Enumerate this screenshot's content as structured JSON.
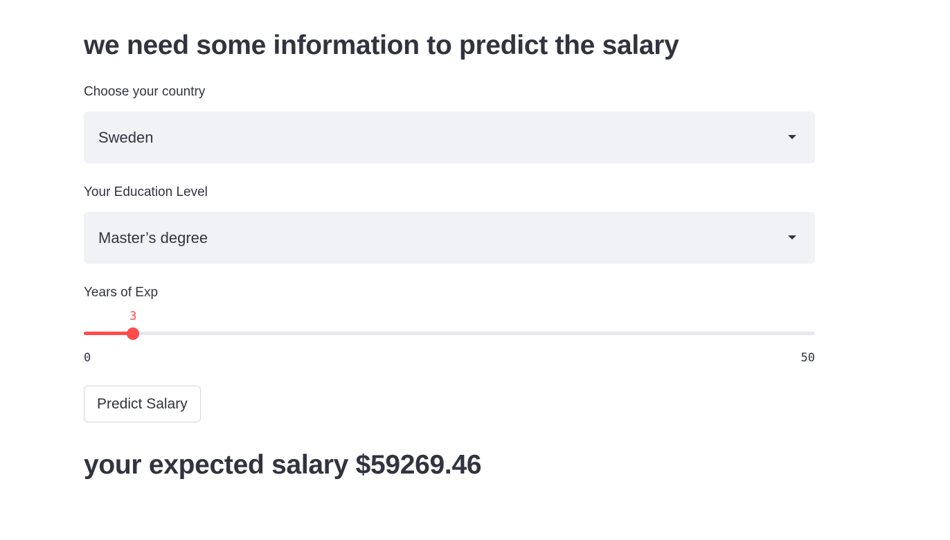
{
  "header": {
    "title": "we need some information to predict the salary"
  },
  "country": {
    "label": "Choose your country",
    "selected": "Sweden",
    "icon": "chevron-down-icon"
  },
  "education": {
    "label": "Your Education Level",
    "selected": "Master’s degree",
    "icon": "chevron-down-icon"
  },
  "experience": {
    "label": "Years of Exp",
    "value": 3,
    "min": 0,
    "max": 50,
    "min_label": "0",
    "max_label": "50",
    "value_label": "3"
  },
  "actions": {
    "predict_label": "Predict Salary"
  },
  "result": {
    "text": "your expected salary $59269.46"
  },
  "colors": {
    "accent": "#ff4b4b",
    "text": "#31333f",
    "select_bg": "#f0f2f6",
    "track": "#e6e8ee"
  }
}
